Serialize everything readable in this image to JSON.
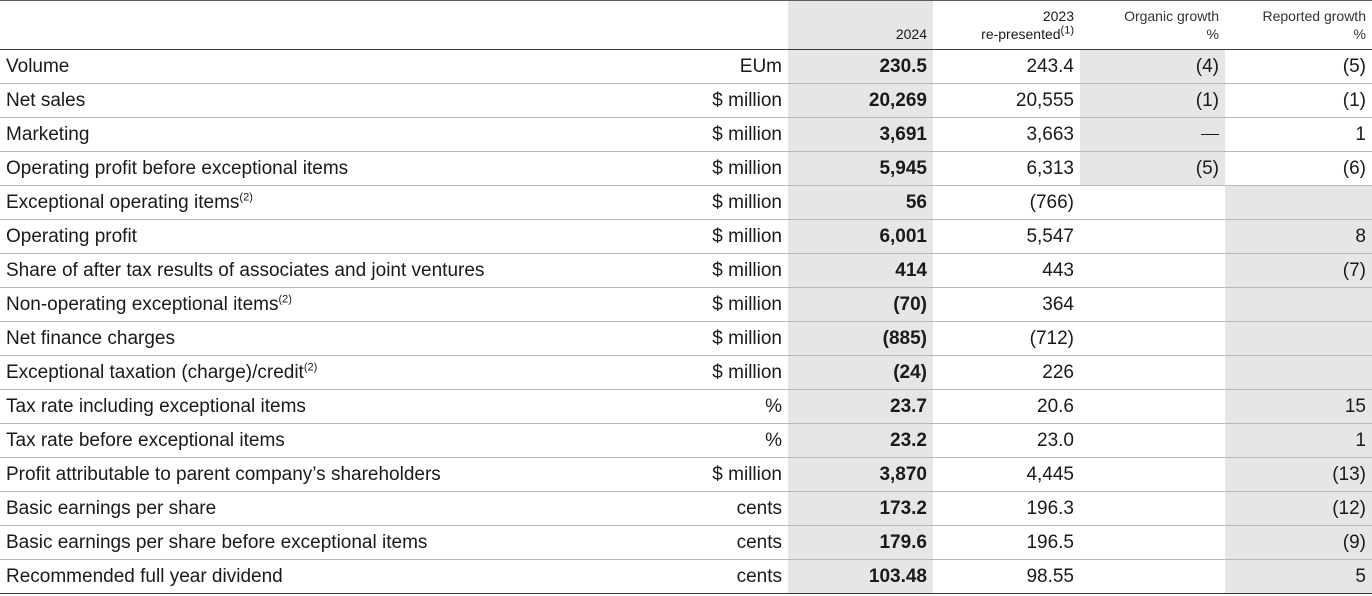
{
  "header": {
    "col_2024": "2024",
    "col_2023_line1": "2023",
    "col_2023_line2": "re-presented",
    "col_2023_sup": "(1)",
    "organic_line1": "Organic growth",
    "organic_line2": "%",
    "reported_line1": "Reported growth",
    "reported_line2": "%"
  },
  "rows": [
    {
      "label": "Volume",
      "sup": "",
      "unit": "EUm",
      "v2024": "230.5",
      "v2023": "243.4",
      "organic": "(4)",
      "reported": "(5)"
    },
    {
      "label": "Net sales",
      "sup": "",
      "unit": "$ million",
      "v2024": "20,269",
      "v2023": "20,555",
      "organic": "(1)",
      "reported": "(1)"
    },
    {
      "label": "Marketing",
      "sup": "",
      "unit": "$ million",
      "v2024": "3,691",
      "v2023": "3,663",
      "organic": "—",
      "reported": "1"
    },
    {
      "label": "Operating profit before exceptional items",
      "sup": "",
      "unit": "$ million",
      "v2024": "5,945",
      "v2023": "6,313",
      "organic": "(5)",
      "reported": "(6)"
    },
    {
      "label": "Exceptional operating items",
      "sup": "(2)",
      "unit": "$ million",
      "v2024": "56",
      "v2023": "(766)",
      "organic": "",
      "reported": ""
    },
    {
      "label": "Operating profit",
      "sup": "",
      "unit": "$ million",
      "v2024": "6,001",
      "v2023": "5,547",
      "organic": "",
      "reported": "8"
    },
    {
      "label": "Share of after tax results of associates and joint ventures",
      "sup": "",
      "unit": "$ million",
      "v2024": "414",
      "v2023": "443",
      "organic": "",
      "reported": "(7)"
    },
    {
      "label": "Non-operating exceptional items",
      "sup": "(2)",
      "unit": "$ million",
      "v2024": "(70)",
      "v2023": "364",
      "organic": "",
      "reported": ""
    },
    {
      "label": "Net finance charges",
      "sup": "",
      "unit": "$ million",
      "v2024": "(885)",
      "v2023": "(712)",
      "organic": "",
      "reported": ""
    },
    {
      "label": "Exceptional taxation (charge)/credit",
      "sup": "(2)",
      "unit": "$ million",
      "v2024": "(24)",
      "v2023": "226",
      "organic": "",
      "reported": ""
    },
    {
      "label": "Tax rate including exceptional items",
      "sup": "",
      "unit": "%",
      "v2024": "23.7",
      "v2023": "20.6",
      "organic": "",
      "reported": "15"
    },
    {
      "label": "Tax rate before exceptional items",
      "sup": "",
      "unit": "%",
      "v2024": "23.2",
      "v2023": "23.0",
      "organic": "",
      "reported": "1"
    },
    {
      "label": "Profit attributable to parent company’s shareholders",
      "sup": "",
      "unit": "$ million",
      "v2024": "3,870",
      "v2023": "4,445",
      "organic": "",
      "reported": "(13)"
    },
    {
      "label": "Basic earnings per share",
      "sup": "",
      "unit": "cents",
      "v2024": "173.2",
      "v2023": "196.3",
      "organic": "",
      "reported": "(12)"
    },
    {
      "label": "Basic earnings per share before exceptional items",
      "sup": "",
      "unit": "cents",
      "v2024": "179.6",
      "v2023": "196.5",
      "organic": "",
      "reported": "(9)"
    },
    {
      "label": "Recommended full year dividend",
      "sup": "",
      "unit": "cents",
      "v2024": "103.48",
      "v2023": "98.55",
      "organic": "",
      "reported": "5"
    }
  ],
  "colors": {
    "shade": "#e6e6e6",
    "rule_dark": "#3a3a3a",
    "rule_light": "#b8b8b8"
  }
}
